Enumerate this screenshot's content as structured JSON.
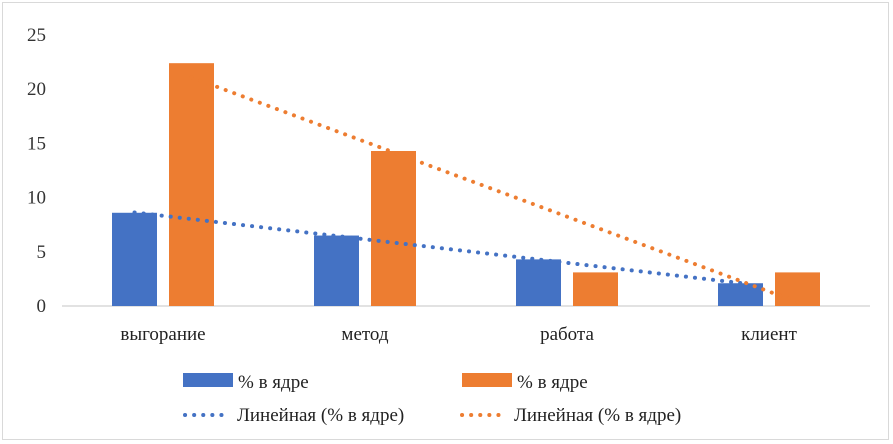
{
  "chart_data": {
    "type": "bar",
    "categories": [
      "выгорание",
      "метод",
      "работа",
      "клиент"
    ],
    "series": [
      {
        "name": "% в ядре",
        "values": [
          8.6,
          6.5,
          4.3,
          2.1
        ],
        "color": "#4472c4"
      },
      {
        "name": "% в ядре",
        "values": [
          22.4,
          14.3,
          3.1,
          3.1
        ],
        "color": "#ed7d31"
      }
    ],
    "trendlines": [
      {
        "name": "Линейная (% в ядре)",
        "type": "linear",
        "series_index": 0,
        "color": "#4472c4"
      },
      {
        "name": "Линейная (% в ядре)",
        "type": "linear",
        "series_index": 1,
        "color": "#ed7d31"
      }
    ],
    "ylim": [
      0,
      25
    ],
    "yticks": [
      "0",
      "5",
      "10",
      "15",
      "20",
      "25"
    ],
    "grid": false,
    "legend": "bottom"
  }
}
